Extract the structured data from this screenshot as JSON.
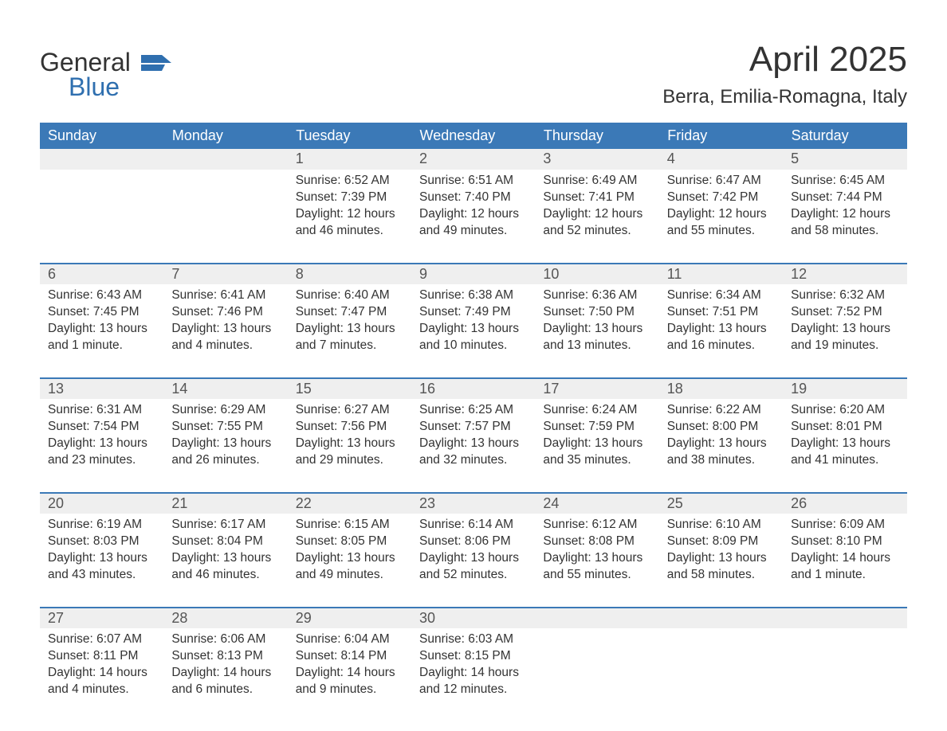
{
  "logo": {
    "word1": "General",
    "word2": "Blue",
    "flag_color": "#2f6faf"
  },
  "title": "April 2025",
  "subtitle": "Berra, Emilia-Romagna, Italy",
  "colors": {
    "header_bg": "#3b79b7",
    "header_text": "#ffffff",
    "daynum_bg": "#efefef",
    "row_border": "#3b79b7",
    "body_text": "#333333",
    "daynum_text": "#555555",
    "background": "#ffffff"
  },
  "typography": {
    "title_fontsize": 44,
    "subtitle_fontsize": 24,
    "header_cell_fontsize": 18,
    "daynum_fontsize": 18,
    "cell_fontsize": 15.5,
    "logo_fontsize": 32
  },
  "weekdays": [
    "Sunday",
    "Monday",
    "Tuesday",
    "Wednesday",
    "Thursday",
    "Friday",
    "Saturday"
  ],
  "weeks": [
    [
      null,
      null,
      {
        "n": "1",
        "sunrise": "6:52 AM",
        "sunset": "7:39 PM",
        "daylight": "12 hours and 46 minutes."
      },
      {
        "n": "2",
        "sunrise": "6:51 AM",
        "sunset": "7:40 PM",
        "daylight": "12 hours and 49 minutes."
      },
      {
        "n": "3",
        "sunrise": "6:49 AM",
        "sunset": "7:41 PM",
        "daylight": "12 hours and 52 minutes."
      },
      {
        "n": "4",
        "sunrise": "6:47 AM",
        "sunset": "7:42 PM",
        "daylight": "12 hours and 55 minutes."
      },
      {
        "n": "5",
        "sunrise": "6:45 AM",
        "sunset": "7:44 PM",
        "daylight": "12 hours and 58 minutes."
      }
    ],
    [
      {
        "n": "6",
        "sunrise": "6:43 AM",
        "sunset": "7:45 PM",
        "daylight": "13 hours and 1 minute."
      },
      {
        "n": "7",
        "sunrise": "6:41 AM",
        "sunset": "7:46 PM",
        "daylight": "13 hours and 4 minutes."
      },
      {
        "n": "8",
        "sunrise": "6:40 AM",
        "sunset": "7:47 PM",
        "daylight": "13 hours and 7 minutes."
      },
      {
        "n": "9",
        "sunrise": "6:38 AM",
        "sunset": "7:49 PM",
        "daylight": "13 hours and 10 minutes."
      },
      {
        "n": "10",
        "sunrise": "6:36 AM",
        "sunset": "7:50 PM",
        "daylight": "13 hours and 13 minutes."
      },
      {
        "n": "11",
        "sunrise": "6:34 AM",
        "sunset": "7:51 PM",
        "daylight": "13 hours and 16 minutes."
      },
      {
        "n": "12",
        "sunrise": "6:32 AM",
        "sunset": "7:52 PM",
        "daylight": "13 hours and 19 minutes."
      }
    ],
    [
      {
        "n": "13",
        "sunrise": "6:31 AM",
        "sunset": "7:54 PM",
        "daylight": "13 hours and 23 minutes."
      },
      {
        "n": "14",
        "sunrise": "6:29 AM",
        "sunset": "7:55 PM",
        "daylight": "13 hours and 26 minutes."
      },
      {
        "n": "15",
        "sunrise": "6:27 AM",
        "sunset": "7:56 PM",
        "daylight": "13 hours and 29 minutes."
      },
      {
        "n": "16",
        "sunrise": "6:25 AM",
        "sunset": "7:57 PM",
        "daylight": "13 hours and 32 minutes."
      },
      {
        "n": "17",
        "sunrise": "6:24 AM",
        "sunset": "7:59 PM",
        "daylight": "13 hours and 35 minutes."
      },
      {
        "n": "18",
        "sunrise": "6:22 AM",
        "sunset": "8:00 PM",
        "daylight": "13 hours and 38 minutes."
      },
      {
        "n": "19",
        "sunrise": "6:20 AM",
        "sunset": "8:01 PM",
        "daylight": "13 hours and 41 minutes."
      }
    ],
    [
      {
        "n": "20",
        "sunrise": "6:19 AM",
        "sunset": "8:03 PM",
        "daylight": "13 hours and 43 minutes."
      },
      {
        "n": "21",
        "sunrise": "6:17 AM",
        "sunset": "8:04 PM",
        "daylight": "13 hours and 46 minutes."
      },
      {
        "n": "22",
        "sunrise": "6:15 AM",
        "sunset": "8:05 PM",
        "daylight": "13 hours and 49 minutes."
      },
      {
        "n": "23",
        "sunrise": "6:14 AM",
        "sunset": "8:06 PM",
        "daylight": "13 hours and 52 minutes."
      },
      {
        "n": "24",
        "sunrise": "6:12 AM",
        "sunset": "8:08 PM",
        "daylight": "13 hours and 55 minutes."
      },
      {
        "n": "25",
        "sunrise": "6:10 AM",
        "sunset": "8:09 PM",
        "daylight": "13 hours and 58 minutes."
      },
      {
        "n": "26",
        "sunrise": "6:09 AM",
        "sunset": "8:10 PM",
        "daylight": "14 hours and 1 minute."
      }
    ],
    [
      {
        "n": "27",
        "sunrise": "6:07 AM",
        "sunset": "8:11 PM",
        "daylight": "14 hours and 4 minutes."
      },
      {
        "n": "28",
        "sunrise": "6:06 AM",
        "sunset": "8:13 PM",
        "daylight": "14 hours and 6 minutes."
      },
      {
        "n": "29",
        "sunrise": "6:04 AM",
        "sunset": "8:14 PM",
        "daylight": "14 hours and 9 minutes."
      },
      {
        "n": "30",
        "sunrise": "6:03 AM",
        "sunset": "8:15 PM",
        "daylight": "14 hours and 12 minutes."
      },
      null,
      null,
      null
    ]
  ],
  "labels": {
    "sunrise": "Sunrise:",
    "sunset": "Sunset:",
    "daylight": "Daylight:"
  }
}
